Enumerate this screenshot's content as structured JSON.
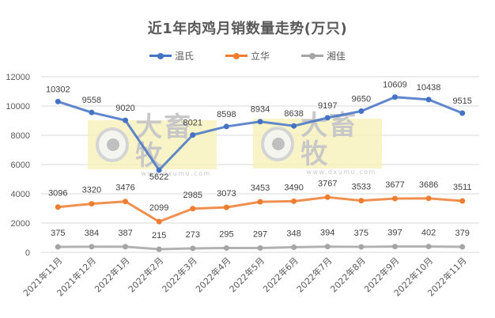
{
  "chart_data": {
    "type": "line",
    "title": "近1年肉鸡月销数量走势(万只)",
    "xlabel": "",
    "ylabel": "",
    "ylim": [
      0,
      12000
    ],
    "yticks": [
      0,
      2000,
      4000,
      6000,
      8000,
      10000,
      12000
    ],
    "grid": true,
    "legend_position": "top",
    "categories": [
      "2021年11月",
      "2021年12月",
      "2022年1月",
      "2022年2月",
      "2022年3月",
      "2022年4月",
      "2022年5月",
      "2022年6月",
      "2022年7月",
      "2022年8月",
      "2022年9月",
      "2022年10月",
      "2022年11月"
    ],
    "series": [
      {
        "name": "温氏",
        "color": "#4472C4",
        "values": [
          10302,
          9558,
          9020,
          5622,
          8021,
          8598,
          8934,
          8638,
          9197,
          9650,
          10609,
          10438,
          9515
        ]
      },
      {
        "name": "立华",
        "color": "#ED7D31",
        "values": [
          3096,
          3320,
          3476,
          2099,
          2985,
          3073,
          3453,
          3490,
          3767,
          3533,
          3677,
          3686,
          3511
        ]
      },
      {
        "name": "湘佳",
        "color": "#A5A5A5",
        "values": [
          375,
          384,
          387,
          215,
          273,
          295,
          297,
          348,
          394,
          375,
          397,
          402,
          379
        ]
      }
    ]
  },
  "watermark": {
    "brand": "大畜牧",
    "url": "www.dxumu.com"
  },
  "colors": {
    "grid": "#d9d9d9",
    "text": "#595959",
    "label": "#404040"
  }
}
